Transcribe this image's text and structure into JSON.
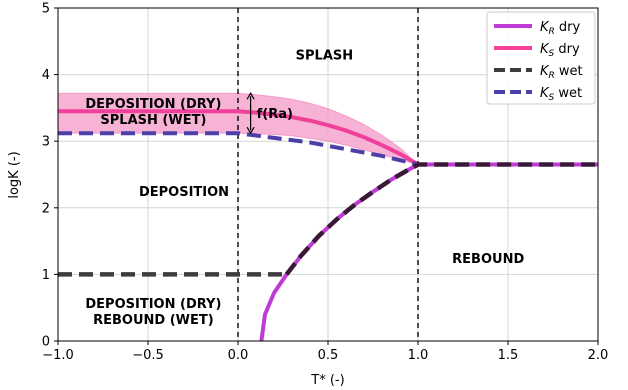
{
  "chart_data": {
    "type": "line",
    "xlabel": "T* (-)",
    "ylabel": "logK (-)",
    "xlim": [
      -1.0,
      2.0
    ],
    "ylim": [
      0,
      5
    ],
    "x_ticks": [
      -1.0,
      -0.5,
      0.0,
      0.5,
      1.0,
      1.5,
      2.0
    ],
    "x_tick_labels": [
      "−1.0",
      "−0.5",
      "0.0",
      "0.5",
      "1.0",
      "1.5",
      "2.0"
    ],
    "y_ticks": [
      0,
      1,
      2,
      3,
      4,
      5
    ],
    "y_tick_labels": [
      "0",
      "1",
      "2",
      "3",
      "4",
      "5"
    ],
    "grid": true,
    "legend_position": "top-right",
    "colors": {
      "KR_dry": "#c03ad8",
      "KS_dry": "#f0409a",
      "KR_wet": "#3d3d3d",
      "KS_wet": "#4a40a8",
      "band": "#f5a0cc",
      "wet_dark": "#3a1838"
    },
    "series": [
      {
        "key": "KR_dry",
        "legend": {
          "main": "K",
          "sub": "R",
          "suffix": " dry"
        },
        "style": "solid",
        "x": [
          0.13,
          0.15,
          0.2,
          0.27,
          0.35,
          0.45,
          0.55,
          0.65,
          0.75,
          0.85,
          0.92,
          1.0,
          2.0
        ],
        "y": [
          0.0,
          0.4,
          0.72,
          1.0,
          1.28,
          1.58,
          1.83,
          2.05,
          2.24,
          2.42,
          2.53,
          2.65,
          2.65
        ]
      },
      {
        "key": "KS_dry",
        "legend": {
          "main": "K",
          "sub": "S",
          "suffix": " dry"
        },
        "style": "solid",
        "x": [
          -1.0,
          0.0,
          0.1,
          0.2,
          0.3,
          0.4,
          0.5,
          0.6,
          0.7,
          0.8,
          0.9,
          1.0
        ],
        "y": [
          3.45,
          3.45,
          3.43,
          3.4,
          3.36,
          3.31,
          3.24,
          3.16,
          3.06,
          2.94,
          2.81,
          2.65
        ]
      },
      {
        "key": "KR_wet",
        "legend": {
          "main": "K",
          "sub": "R",
          "suffix": " wet"
        },
        "style": "dashed",
        "x": [
          -1.0,
          0.27,
          0.35,
          0.45,
          0.55,
          0.65,
          0.75,
          0.85,
          0.92,
          1.0,
          2.0
        ],
        "y": [
          1.0,
          1.0,
          1.28,
          1.58,
          1.83,
          2.05,
          2.24,
          2.42,
          2.53,
          2.65,
          2.65
        ]
      },
      {
        "key": "KS_wet",
        "legend": {
          "main": "K",
          "sub": "S",
          "suffix": " wet"
        },
        "style": "dashed",
        "x": [
          -1.0,
          0.0,
          0.2,
          0.4,
          0.6,
          0.8,
          1.0
        ],
        "y": [
          3.12,
          3.12,
          3.05,
          2.98,
          2.88,
          2.78,
          2.65
        ]
      }
    ],
    "band": {
      "x": [
        -1.0,
        0.0,
        0.1,
        0.2,
        0.3,
        0.4,
        0.5,
        0.6,
        0.7,
        0.8,
        0.9,
        1.0
      ],
      "upper": [
        3.72,
        3.72,
        3.7,
        3.67,
        3.63,
        3.57,
        3.49,
        3.38,
        3.25,
        3.09,
        2.9,
        2.65
      ],
      "lower": [
        3.12,
        3.12,
        3.11,
        3.1,
        3.08,
        3.04,
        3.0,
        2.94,
        2.87,
        2.79,
        2.72,
        2.65
      ]
    },
    "vlines": [
      0.0,
      1.0
    ],
    "annotations": {
      "arrow": {
        "x": 0.07,
        "y_low": 3.12,
        "y_high": 3.72
      },
      "arrow_label": "f(Ra)"
    },
    "region_labels": [
      {
        "id": "splash",
        "lines": [
          "SPLASH"
        ],
        "x": 0.48,
        "y": 4.3
      },
      {
        "id": "deposition-dry-splash-wet",
        "lines": [
          "DEPOSITION (DRY)",
          "SPLASH (WET)"
        ],
        "x": -0.47,
        "y": 3.45
      },
      {
        "id": "deposition",
        "lines": [
          "DEPOSITION"
        ],
        "x": -0.3,
        "y": 2.25
      },
      {
        "id": "rebound",
        "lines": [
          "REBOUND"
        ],
        "x": 1.39,
        "y": 1.25
      },
      {
        "id": "deposition-dry-rebound-wet",
        "lines": [
          "DEPOSITION (DRY)",
          "REBOUND (WET)"
        ],
        "x": -0.47,
        "y": 0.45
      }
    ]
  }
}
